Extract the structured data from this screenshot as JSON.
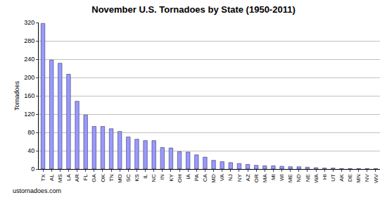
{
  "chart_data": {
    "type": "bar",
    "title": "November U.S. Tornadoes by State (1950-2011)",
    "y_label": "Tornadoes",
    "annotations": [
      "ustornadoes.com"
    ],
    "categories": [
      "TX",
      "AL",
      "MS",
      "LA",
      "AR",
      "FL",
      "GA",
      "OK",
      "TN",
      "MO",
      "SC",
      "KS",
      "IL",
      "NC",
      "IN",
      "KY",
      "OH",
      "IA",
      "PA",
      "CA",
      "MD",
      "VA",
      "NJ",
      "NY",
      "AZ",
      "OR",
      "MA",
      "MI",
      "WI",
      "ME",
      "ND",
      "NE",
      "WA",
      "HI",
      "UT",
      "AK",
      "DE",
      "MN",
      "NV",
      "WV"
    ],
    "values": [
      318,
      238,
      231,
      207,
      148,
      118,
      93,
      93,
      88,
      82,
      70,
      65,
      62,
      62,
      47,
      46,
      38,
      37,
      31,
      26,
      19,
      16,
      14,
      12,
      10,
      8,
      7,
      7,
      6,
      5,
      5,
      4,
      3,
      2,
      2,
      1,
      1,
      1,
      1,
      1
    ],
    "color": "#9999ff",
    "ylim": [
      0,
      320
    ],
    "yticks": [
      0,
      40,
      80,
      120,
      160,
      200,
      240,
      280,
      320
    ],
    "grid": true
  }
}
